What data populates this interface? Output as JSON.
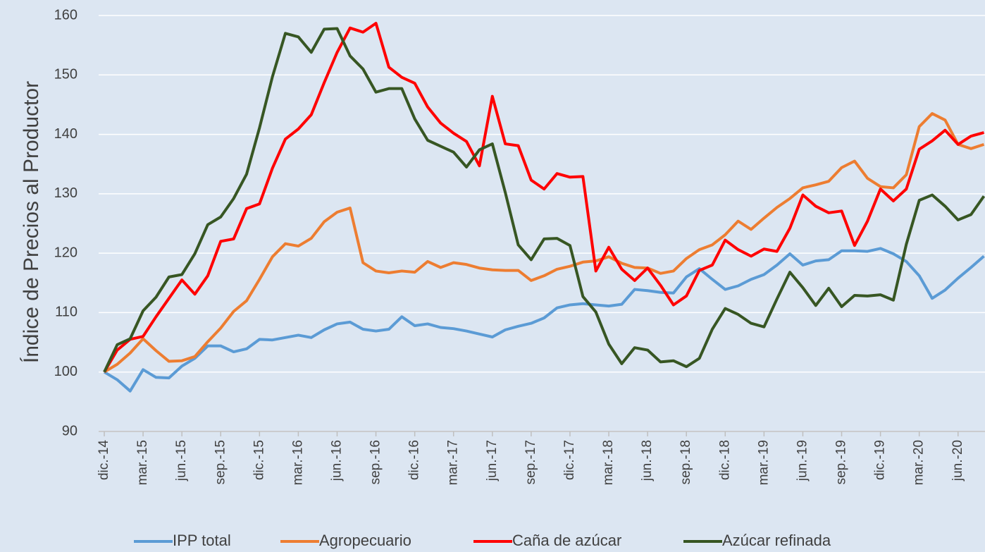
{
  "chart_data": {
    "type": "line",
    "y_label": "Índice de Precios al Productor",
    "categories": [
      "dic.-14",
      null,
      null,
      "mar.-15",
      null,
      null,
      "jun.-15",
      null,
      null,
      "sep.-15",
      null,
      null,
      "dic.-15",
      null,
      null,
      "mar.-16",
      null,
      null,
      "jun.-16",
      null,
      null,
      "sep.-16",
      null,
      null,
      "dic.-16",
      null,
      null,
      "mar.-17",
      null,
      null,
      "jun.-17",
      null,
      null,
      "sep.-17",
      null,
      null,
      "dic.-17",
      null,
      null,
      "mar.-18",
      null,
      null,
      "jun.-18",
      null,
      null,
      "sep.-18",
      null,
      null,
      "dic.-18",
      null,
      null,
      "mar.-19",
      null,
      null,
      "jun.-19",
      null,
      null,
      "sep.-19",
      null,
      null,
      "dic.-19",
      null,
      null,
      "mar.-20",
      null,
      null,
      "jun.-20",
      null,
      null
    ],
    "series": [
      {
        "name": "IPP total",
        "color": "#5b9bd5",
        "values": [
          100,
          98.7,
          96.8,
          100.4,
          99.1,
          99.0,
          101.0,
          102.3,
          104.4,
          104.4,
          103.4,
          103.9,
          105.5,
          105.4,
          105.8,
          106.2,
          105.8,
          107.1,
          108.1,
          108.4,
          107.2,
          106.9,
          107.2,
          109.3,
          107.8,
          108.1,
          107.5,
          107.3,
          106.9,
          106.4,
          105.9,
          107.1,
          107.7,
          108.2,
          109.1,
          110.8,
          111.3,
          111.5,
          111.3,
          111.1,
          111.4,
          113.9,
          113.7,
          113.4,
          113.3,
          116.0,
          117.4,
          115.6,
          113.9,
          114.5,
          115.6,
          116.4,
          118.0,
          119.9,
          118.0,
          118.7,
          118.9,
          120.4,
          120.4,
          120.3,
          120.8,
          119.9,
          118.6,
          116.2,
          112.4,
          113.8,
          115.8,
          117.6,
          119.5
        ]
      },
      {
        "name": "Agropecuario",
        "color": "#ed7d31",
        "values": [
          100,
          101.3,
          103.2,
          105.6,
          103.6,
          101.8,
          101.9,
          102.6,
          105.1,
          107.4,
          110.2,
          112.0,
          115.6,
          119.4,
          121.6,
          121.2,
          122.5,
          125.3,
          126.9,
          127.6,
          118.4,
          117.0,
          116.7,
          117.0,
          116.8,
          118.6,
          117.6,
          118.4,
          118.1,
          117.5,
          117.2,
          117.1,
          117.1,
          115.4,
          116.2,
          117.3,
          117.8,
          118.5,
          118.7,
          119.4,
          118.3,
          117.6,
          117.5,
          116.6,
          117.0,
          119.1,
          120.6,
          121.4,
          123.1,
          125.4,
          124.0,
          125.9,
          127.7,
          129.2,
          131.0,
          131.5,
          132.1,
          134.4,
          135.5,
          132.6,
          131.2,
          131.0,
          133.2,
          141.3,
          143.5,
          142.4,
          138.3,
          137.6,
          138.3
        ]
      },
      {
        "name": "Caña de azúcar",
        "color": "#ff0000",
        "values": [
          100,
          103.7,
          105.5,
          106.0,
          109.3,
          112.4,
          115.5,
          113.1,
          116.2,
          122.0,
          122.4,
          127.5,
          128.3,
          134.3,
          139.2,
          140.9,
          143.3,
          148.7,
          153.8,
          157.9,
          157.2,
          158.7,
          151.3,
          149.6,
          148.6,
          144.6,
          141.9,
          140.2,
          138.8,
          134.7,
          146.4,
          138.4,
          138.1,
          132.3,
          130.8,
          133.4,
          132.8,
          132.9,
          117.0,
          121.0,
          117.3,
          115.4,
          117.5,
          114.6,
          111.3,
          112.8,
          117.1,
          118.0,
          122.2,
          120.6,
          119.5,
          120.7,
          120.3,
          124.2,
          129.8,
          127.9,
          126.8,
          127.1,
          121.3,
          125.4,
          130.8,
          128.8,
          130.8,
          137.5,
          138.9,
          140.7,
          138.3,
          139.7,
          140.3
        ]
      },
      {
        "name": "Azúcar refinada",
        "color": "#375623",
        "values": [
          100,
          104.6,
          105.6,
          110.3,
          112.6,
          116.0,
          116.4,
          119.9,
          124.8,
          126.1,
          129.2,
          133.3,
          141.1,
          149.7,
          157.0,
          156.4,
          153.8,
          157.7,
          157.8,
          153.2,
          151.0,
          147.1,
          147.7,
          147.7,
          142.6,
          139.0,
          138.0,
          137.0,
          134.5,
          137.4,
          138.4,
          130.2,
          121.4,
          118.9,
          122.4,
          122.5,
          121.3,
          112.7,
          110.1,
          104.7,
          101.4,
          104.1,
          103.7,
          101.7,
          101.9,
          100.9,
          102.3,
          107.2,
          110.7,
          109.7,
          108.2,
          107.6,
          112.3,
          116.8,
          114.2,
          111.2,
          114.1,
          111.0,
          112.9,
          112.8,
          113.0,
          112.1,
          121.5,
          128.9,
          129.8,
          127.9,
          125.6,
          126.5,
          129.6
        ]
      }
    ],
    "ylim": [
      90,
      160
    ],
    "yticks": [
      90,
      100,
      110,
      120,
      130,
      140,
      150,
      160
    ],
    "grid": true,
    "legend": "bottom"
  }
}
